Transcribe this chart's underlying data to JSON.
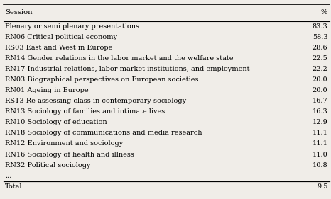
{
  "col1_header": "Session",
  "col2_header": "%",
  "rows": [
    [
      "Plenary or semi plenary presentations",
      "83.3"
    ],
    [
      "RN06 Critical political economy",
      "58.3"
    ],
    [
      "RS03 East and West in Europe",
      "28.6"
    ],
    [
      "RN14 Gender relations in the labor market and the welfare state",
      "22.5"
    ],
    [
      "RN17 Industrial relations, labor market institutions, and employment",
      "22.2"
    ],
    [
      "RN03 Biographical perspectives on European societies",
      "20.0"
    ],
    [
      "RN01 Ageing in Europe",
      "20.0"
    ],
    [
      "RS13 Re-assessing class in contemporary sociology",
      "16.7"
    ],
    [
      "RN13 Sociology of families and intimate lives",
      "16.3"
    ],
    [
      "RN10 Sociology of education",
      "12.9"
    ],
    [
      "RN18 Sociology of communications and media research",
      "11.1"
    ],
    [
      "RN12 Environment and sociology",
      "11.1"
    ],
    [
      "RN16 Sociology of health and illness",
      "11.0"
    ],
    [
      "RN32 Political sociology",
      "10.8"
    ],
    [
      "...",
      ""
    ],
    [
      "Total",
      "9.5"
    ]
  ],
  "bg_color": "#f0ede8",
  "font_size": 7.0,
  "header_font_size": 7.2,
  "figsize": [
    4.66,
    2.81
  ],
  "dpi": 100
}
